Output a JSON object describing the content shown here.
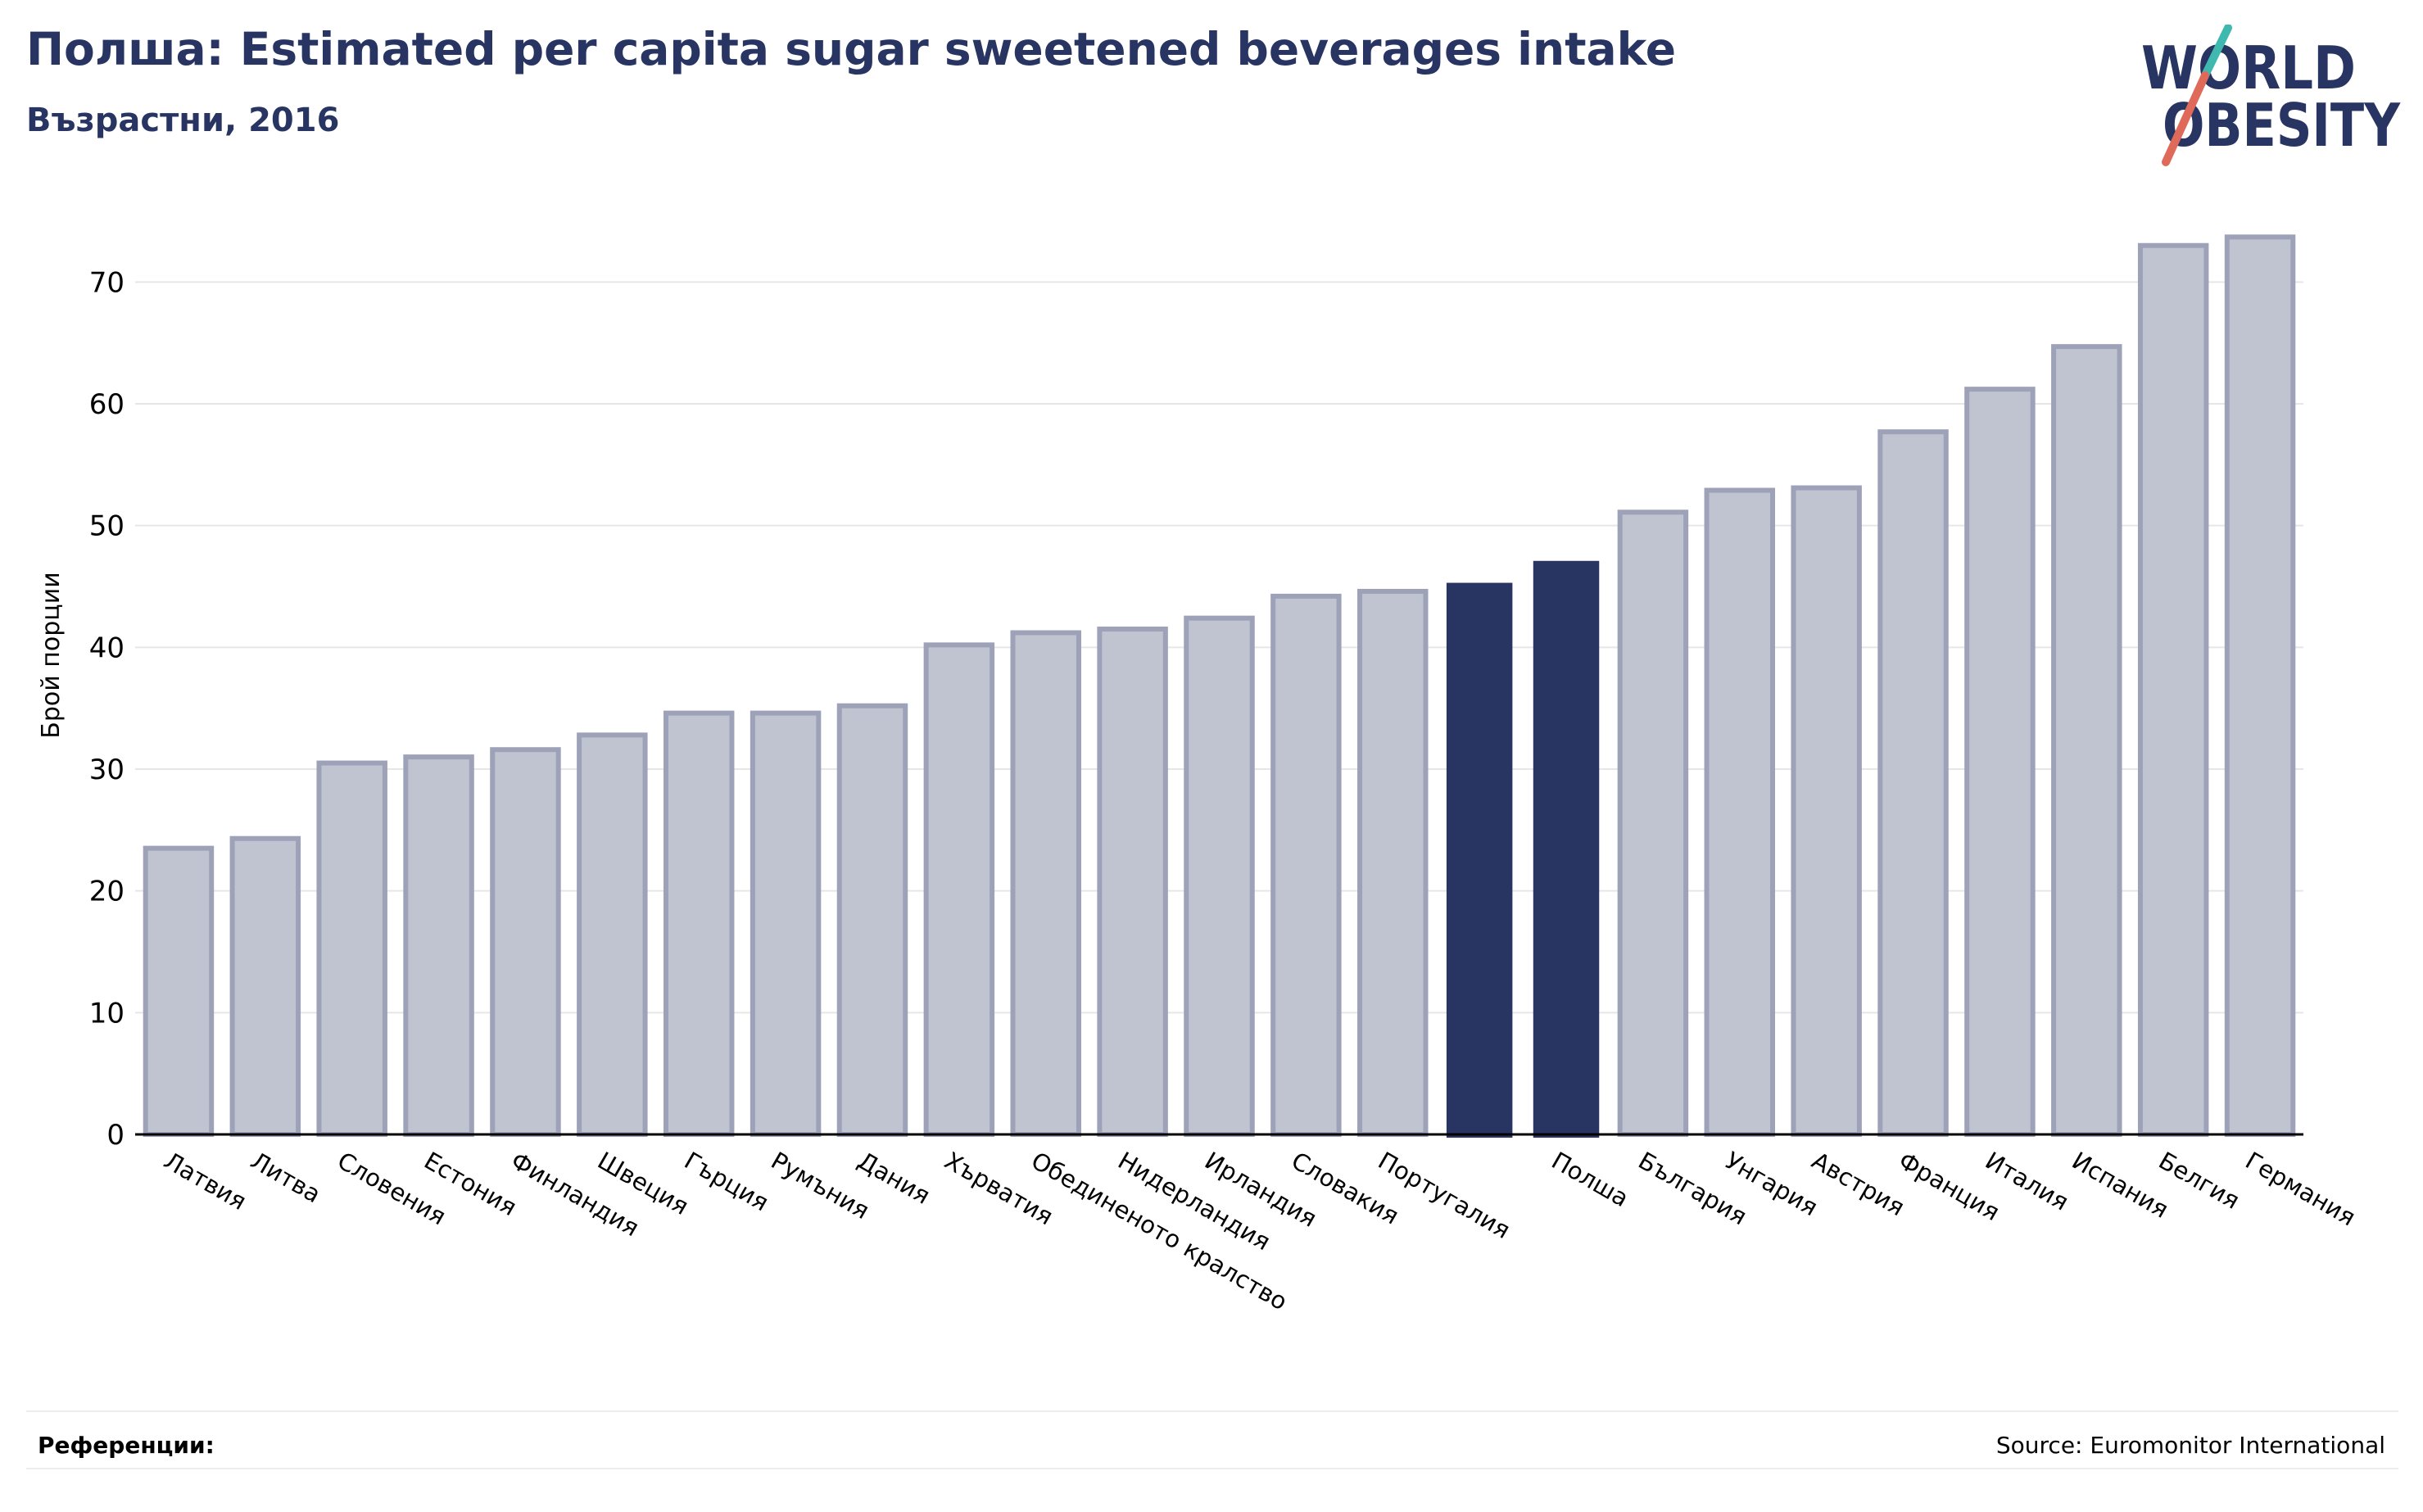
{
  "header": {
    "title": "Полша: Estimated per capita sugar sweetened beverages intake",
    "subtitle": "Възрастни, 2016"
  },
  "logo": {
    "line1": "WORLD",
    "line2": "OBESITY"
  },
  "footer": {
    "references_label": "Референции:",
    "source": "Source: Euromonitor International"
  },
  "colors": {
    "highlight": "#283462",
    "bar_fill": "#c0c3d0",
    "bar_stroke": "#9da2b8",
    "title": "#283462",
    "logo_accent_teal": "#3fb8b0",
    "logo_accent_red": "#e06a5a"
  },
  "chart_data": {
    "type": "bar",
    "title": "Полша: Estimated per capita sugar sweetened beverages intake",
    "subtitle": "Възрастни, 2016",
    "ylabel": "Брой порции",
    "xlabel": "",
    "ylim": [
      0,
      75
    ],
    "yticks": [
      0,
      10,
      20,
      30,
      40,
      50,
      60,
      70
    ],
    "grid": true,
    "categories": [
      "Латвия",
      "Литва",
      "Словения",
      "Естония",
      "Финландия",
      "Швеция",
      "Гърция",
      "Румъния",
      "Дания",
      "Хърватия",
      "Обединеното кралство",
      "Нидерландия",
      "Ирландия",
      "Словакия",
      "Португалия",
      "",
      "Полша",
      "България",
      "Унгария",
      "Австрия",
      "Франция",
      "Италия",
      "Испания",
      "Белгия",
      "Германия"
    ],
    "values": [
      23.5,
      24.3,
      30.5,
      31,
      31.6,
      32.8,
      34.6,
      34.6,
      35.2,
      40.2,
      41.2,
      41.5,
      42.4,
      44.2,
      44.6,
      45.3,
      47.1,
      51.1,
      52.9,
      53.1,
      57.7,
      61.2,
      64.7,
      73.0,
      73.7
    ],
    "highlighted": [
      15,
      16
    ]
  }
}
